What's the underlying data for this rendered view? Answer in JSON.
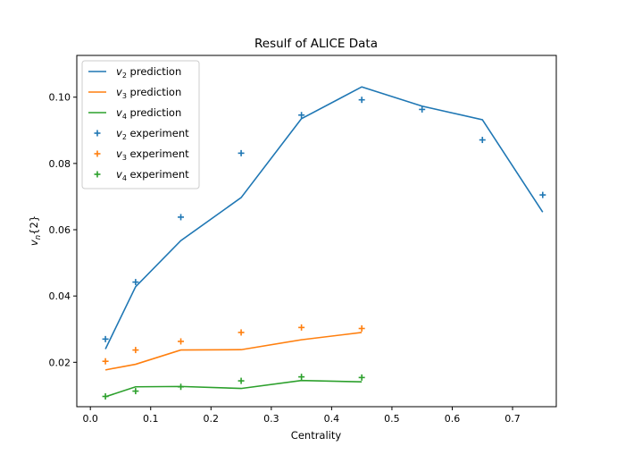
{
  "chart_data": {
    "type": "line",
    "title": "Resulf of ALICE Data",
    "xlabel": "Centrality",
    "ylabel": "vn{2}",
    "xlim": [
      -0.0225,
      0.7725
    ],
    "ylim": [
      0.0066,
      0.1126
    ],
    "xticks": [
      0.0,
      0.1,
      0.2,
      0.3,
      0.4,
      0.5,
      0.6,
      0.7
    ],
    "xtick_labels": [
      "0.0",
      "0.1",
      "0.2",
      "0.3",
      "0.4",
      "0.5",
      "0.6",
      "0.7"
    ],
    "yticks": [
      0.02,
      0.04,
      0.06,
      0.08,
      0.1
    ],
    "ytick_labels": [
      "0.02",
      "0.04",
      "0.06",
      "0.08",
      "0.10"
    ],
    "grid": false,
    "legend_position": "top-left",
    "series": [
      {
        "name": "v2 prediction",
        "sub": "2",
        "suffix": "prediction",
        "kind": "line",
        "color": "#1f77b4",
        "x": [
          0.025,
          0.075,
          0.15,
          0.25,
          0.35,
          0.45,
          0.55,
          0.65,
          0.75
        ],
        "y": [
          0.024,
          0.0428,
          0.0567,
          0.0697,
          0.0935,
          0.1031,
          0.0973,
          0.0932,
          0.0653
        ]
      },
      {
        "name": "v3 prediction",
        "sub": "3",
        "suffix": "prediction",
        "kind": "line",
        "color": "#ff7f0e",
        "x": [
          0.025,
          0.075,
          0.15,
          0.25,
          0.35,
          0.45
        ],
        "y": [
          0.0177,
          0.0194,
          0.0237,
          0.0238,
          0.0268,
          0.029
        ]
      },
      {
        "name": "v4 prediction",
        "sub": "4",
        "suffix": "prediction",
        "kind": "line",
        "color": "#2ca02c",
        "x": [
          0.025,
          0.075,
          0.15,
          0.25,
          0.35,
          0.45
        ],
        "y": [
          0.0096,
          0.0126,
          0.0127,
          0.0121,
          0.0145,
          0.0141
        ]
      },
      {
        "name": "v2 experiment",
        "sub": "2",
        "suffix": "experiment",
        "kind": "marker",
        "color": "#1f77b4",
        "x": [
          0.025,
          0.075,
          0.15,
          0.25,
          0.35,
          0.45,
          0.55,
          0.65,
          0.75
        ],
        "y": [
          0.027,
          0.0442,
          0.0638,
          0.0831,
          0.0946,
          0.0992,
          0.0963,
          0.0871,
          0.0705
        ]
      },
      {
        "name": "v3 experiment",
        "sub": "3",
        "suffix": "experiment",
        "kind": "marker",
        "color": "#ff7f0e",
        "x": [
          0.025,
          0.075,
          0.15,
          0.25,
          0.35,
          0.45
        ],
        "y": [
          0.0203,
          0.0237,
          0.0263,
          0.029,
          0.0305,
          0.0302
        ]
      },
      {
        "name": "v4 experiment",
        "sub": "4",
        "suffix": "experiment",
        "kind": "marker",
        "color": "#2ca02c",
        "x": [
          0.025,
          0.075,
          0.15,
          0.25,
          0.35,
          0.45
        ],
        "y": [
          0.0097,
          0.0113,
          0.0126,
          0.0144,
          0.0156,
          0.0154
        ]
      }
    ]
  }
}
